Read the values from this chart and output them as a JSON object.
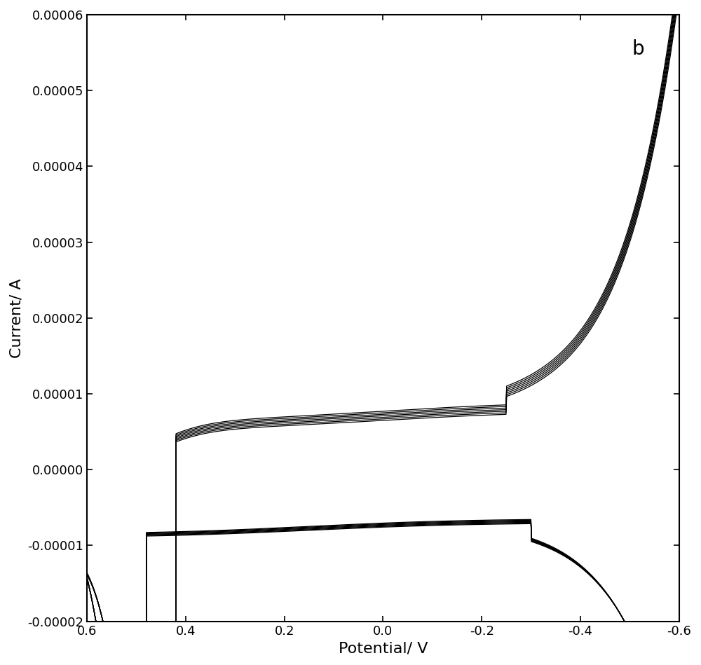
{
  "title_label": "b",
  "xlabel": "Potential/ V",
  "ylabel": "Current/ A",
  "xlim": [
    0.6,
    -0.6
  ],
  "ylim": [
    -2e-05,
    6e-05
  ],
  "xticks": [
    0.6,
    0.4,
    0.2,
    0.0,
    -0.2,
    -0.4,
    -0.6
  ],
  "yticks": [
    -2e-05,
    -1e-05,
    0.0,
    1e-05,
    2e-05,
    3e-05,
    4e-05,
    5e-05,
    6e-05
  ],
  "line_color": "#000000",
  "background_color": "#ffffff",
  "num_cycles": 7,
  "figsize": [
    10.0,
    9.49
  ],
  "dpi": 100
}
